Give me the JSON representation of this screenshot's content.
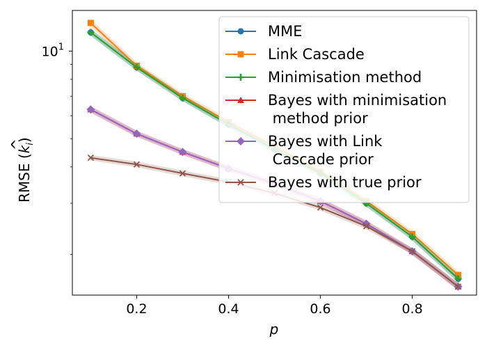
{
  "chart_data": {
    "type": "line",
    "title": "",
    "xlabel": "p",
    "ylabel": "RMSE (k̂_i)",
    "ylabel_parts": {
      "main": "RMSE (",
      "var": "k",
      "hat": "^",
      "sub": "i",
      "close": ")"
    },
    "yscale": "log",
    "xlim": [
      0.06,
      0.94
    ],
    "ylim": [
      1.45,
      13.8
    ],
    "x_ticks": [
      0.2,
      0.4,
      0.6,
      0.8
    ],
    "x_tick_labels": [
      "0.2",
      "0.4",
      "0.6",
      "0.8"
    ],
    "y_major_tick": {
      "value": 10,
      "base": "10",
      "exp": "1"
    },
    "y_minor_ticks": [
      2,
      3,
      4,
      5,
      6,
      7,
      8,
      9
    ],
    "legend_position": "top-right",
    "x": [
      0.1,
      0.2,
      0.3,
      0.4,
      0.5,
      0.6,
      0.7,
      0.8,
      0.9
    ],
    "series": [
      {
        "name": "MME",
        "color": "#1f77b4",
        "marker": "circle",
        "values": [
          11.6,
          8.8,
          6.9,
          5.6,
          4.6,
          3.8,
          3.0,
          2.3,
          1.65
        ]
      },
      {
        "name": "Link Cascade",
        "color": "#ff7f0e",
        "marker": "square",
        "values": [
          12.5,
          8.9,
          7.0,
          5.7,
          4.7,
          3.85,
          3.05,
          2.35,
          1.7
        ]
      },
      {
        "name": "Minimisation method",
        "color": "#2ca02c",
        "marker": "plus",
        "values": [
          11.6,
          8.8,
          6.9,
          5.6,
          4.6,
          3.8,
          3.0,
          2.3,
          1.65
        ]
      },
      {
        "name": "Bayes with minimisation\n method prior",
        "color": "#d62728",
        "marker": "triangle",
        "values": [
          6.3,
          5.2,
          4.5,
          3.95,
          3.5,
          3.05,
          2.55,
          2.05,
          1.55
        ]
      },
      {
        "name": "Bayes with Link\n Cascade prior",
        "color": "#9467bd",
        "marker": "diamond",
        "values": [
          6.3,
          5.2,
          4.5,
          3.95,
          3.5,
          3.05,
          2.55,
          2.05,
          1.55
        ]
      },
      {
        "name": "Bayes with true prior",
        "color": "#8c564b",
        "marker": "x",
        "values": [
          4.3,
          4.08,
          3.8,
          3.55,
          3.25,
          2.9,
          2.5,
          2.05,
          1.55
        ]
      }
    ]
  }
}
